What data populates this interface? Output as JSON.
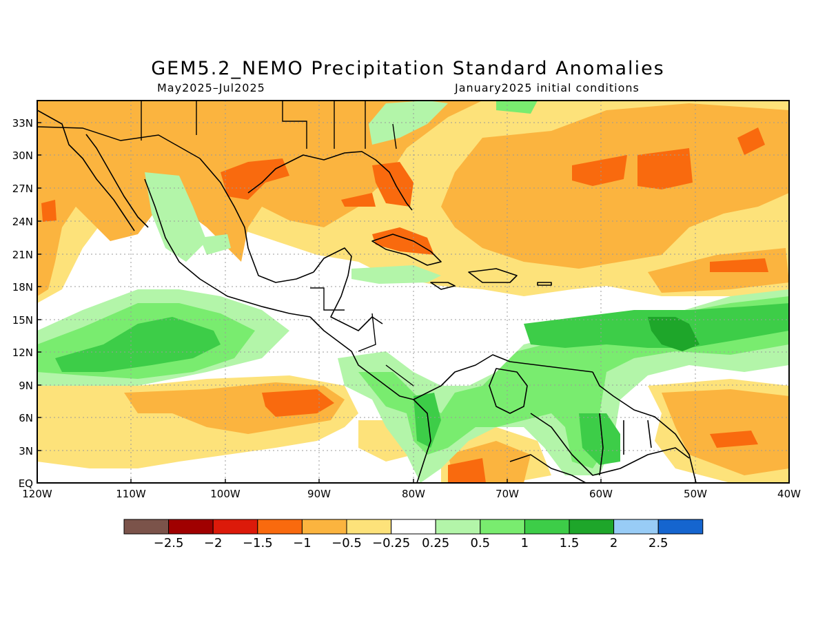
{
  "title": "GEM5.2_NEMO Precipitation Standard Anomalies",
  "period": "May2025–Jul2025",
  "initial_conditions": "January2025 initial conditions",
  "lat_labels": [
    "33N",
    "30N",
    "27N",
    "24N",
    "21N",
    "18N",
    "15N",
    "12N",
    "9N",
    "6N",
    "3N",
    "EQ"
  ],
  "lon_labels": [
    "120W",
    "110W",
    "100W",
    "90W",
    "80W",
    "70W",
    "60W",
    "50W",
    "40W"
  ],
  "colorbar": {
    "colors": [
      "#7b534a",
      "#a00000",
      "#dc1a0a",
      "#f96a0e",
      "#fbb43f",
      "#fde27a",
      "#ffffff",
      "#b3f5a9",
      "#79ec6f",
      "#3dcd48",
      "#1ea62a",
      "#98ccf6",
      "#1565cf"
    ],
    "labels": [
      "−2.5",
      "−2",
      "−1.5",
      "−1",
      "−0.5",
      "−0.25",
      "0.25",
      "0.5",
      "1",
      "1.5",
      "2",
      "2.5"
    ]
  },
  "chart_data": {
    "type": "heatmap",
    "title": "GEM5.2_NEMO Precipitation Standard Anomalies",
    "subtitle_left": "May2025–Jul2025",
    "subtitle_right": "January2025 initial conditions",
    "x_range": [
      "120W",
      "40W"
    ],
    "y_range": [
      "EQ",
      "35N"
    ],
    "grid": "dotted",
    "legend": "bottom",
    "levels": [
      -2.5,
      -2,
      -1.5,
      -1,
      -0.5,
      -0.25,
      0.25,
      0.5,
      1,
      1.5,
      2,
      2.5
    ]
  }
}
